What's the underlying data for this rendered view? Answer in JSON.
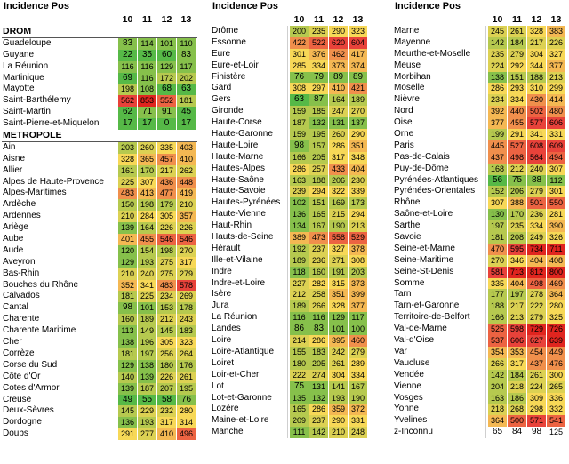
{
  "panels": [
    {
      "title": "Incidence Pos",
      "years": [
        "10",
        "11",
        "12",
        "13"
      ],
      "rows": [
        {
          "type": "section",
          "label": "DROM"
        },
        {
          "label": "Guadeloupe",
          "v": [
            83,
            114,
            101,
            110
          ]
        },
        {
          "label": "Guyane",
          "v": [
            22,
            35,
            60,
            83
          ]
        },
        {
          "label": "La Réunion",
          "v": [
            116,
            116,
            129,
            117
          ]
        },
        {
          "label": "Martinique",
          "v": [
            69,
            116,
            172,
            202
          ]
        },
        {
          "label": "Mayotte",
          "v": [
            198,
            108,
            68,
            63
          ]
        },
        {
          "label": "Saint-Barthélemy",
          "v": [
            562,
            853,
            552,
            181
          ]
        },
        {
          "label": "Saint-Martin",
          "v": [
            62,
            71,
            91,
            45
          ]
        },
        {
          "label": "Saint-Pierre-et-Miquelon",
          "v": [
            17,
            17,
            0,
            17
          ]
        },
        {
          "type": "section",
          "label": "METROPOLE"
        },
        {
          "label": "Ain",
          "v": [
            203,
            260,
            335,
            403
          ]
        },
        {
          "label": "Aisne",
          "v": [
            328,
            365,
            457,
            410
          ]
        },
        {
          "label": "Allier",
          "v": [
            161,
            170,
            217,
            262
          ]
        },
        {
          "label": "Alpes de Haute-Provence",
          "v": [
            225,
            307,
            436,
            448
          ]
        },
        {
          "label": "Alpes-Maritimes",
          "v": [
            483,
            413,
            477,
            419
          ]
        },
        {
          "label": "Ardèche",
          "v": [
            150,
            198,
            179,
            210
          ]
        },
        {
          "label": "Ardennes",
          "v": [
            210,
            284,
            305,
            357
          ]
        },
        {
          "label": "Ariège",
          "v": [
            139,
            164,
            226,
            226
          ]
        },
        {
          "label": "Aube",
          "v": [
            401,
            455,
            546,
            546
          ]
        },
        {
          "label": "Aude",
          "v": [
            120,
            154,
            198,
            270
          ]
        },
        {
          "label": "Aveyron",
          "v": [
            129,
            193,
            275,
            317
          ]
        },
        {
          "label": "Bas-Rhin",
          "v": [
            210,
            240,
            275,
            279
          ]
        },
        {
          "label": "Bouches du Rhône",
          "v": [
            352,
            341,
            483,
            578
          ]
        },
        {
          "label": "Calvados",
          "v": [
            181,
            225,
            234,
            269
          ]
        },
        {
          "label": "Cantal",
          "v": [
            98,
            101,
            153,
            178
          ]
        },
        {
          "label": "Charente",
          "v": [
            160,
            189,
            212,
            243
          ]
        },
        {
          "label": "Charente Maritime",
          "v": [
            113,
            149,
            145,
            183
          ]
        },
        {
          "label": "Cher",
          "v": [
            138,
            196,
            305,
            323
          ]
        },
        {
          "label": "Corrèze",
          "v": [
            181,
            197,
            256,
            264
          ]
        },
        {
          "label": "Corse du Sud",
          "v": [
            129,
            138,
            180,
            176
          ]
        },
        {
          "label": "Côte d'Or",
          "v": [
            140,
            139,
            226,
            261
          ]
        },
        {
          "label": "Cotes d'Armor",
          "v": [
            139,
            187,
            207,
            195
          ]
        },
        {
          "label": "Creuse",
          "v": [
            49,
            55,
            58,
            76
          ]
        },
        {
          "label": "Deux-Sèvres",
          "v": [
            145,
            229,
            232,
            280
          ]
        },
        {
          "label": "Dordogne",
          "v": [
            136,
            193,
            317,
            314
          ]
        },
        {
          "label": "Doubs",
          "v": [
            291,
            277,
            410,
            496
          ]
        }
      ]
    },
    {
      "title": "Incidence Pos",
      "years": [
        "10",
        "11",
        "12",
        "13"
      ],
      "rows": [
        {
          "label": "Drôme",
          "v": [
            200,
            235,
            290,
            323
          ]
        },
        {
          "label": "Essonne",
          "v": [
            422,
            522,
            620,
            604
          ]
        },
        {
          "label": "Eure",
          "v": [
            301,
            376,
            462,
            417
          ]
        },
        {
          "label": "Eure-et-Loir",
          "v": [
            285,
            334,
            373,
            374
          ]
        },
        {
          "label": "Finistère",
          "v": [
            76,
            79,
            89,
            89
          ]
        },
        {
          "label": "Gard",
          "v": [
            308,
            297,
            410,
            421
          ]
        },
        {
          "label": "Gers",
          "v": [
            63,
            87,
            164,
            189
          ]
        },
        {
          "label": "Gironde",
          "v": [
            159,
            185,
            247,
            270
          ]
        },
        {
          "label": "Haute-Corse",
          "v": [
            187,
            132,
            131,
            137
          ]
        },
        {
          "label": "Haute-Garonne",
          "v": [
            159,
            195,
            260,
            290
          ]
        },
        {
          "label": "Haute-Loire",
          "v": [
            98,
            157,
            286,
            351
          ]
        },
        {
          "label": "Haute-Marne",
          "v": [
            166,
            205,
            317,
            348
          ]
        },
        {
          "label": "Hautes-Alpes",
          "v": [
            286,
            257,
            433,
            404
          ]
        },
        {
          "label": "Haute-Saône",
          "v": [
            163,
            188,
            206,
            230
          ]
        },
        {
          "label": "Haute-Savoie",
          "v": [
            239,
            294,
            322,
            339
          ]
        },
        {
          "label": "Hautes-Pyrénées",
          "v": [
            102,
            151,
            169,
            173
          ]
        },
        {
          "label": "Haute-Vienne",
          "v": [
            136,
            165,
            215,
            294
          ]
        },
        {
          "label": "Haut-Rhin",
          "v": [
            134,
            167,
            190,
            213
          ]
        },
        {
          "label": "Hauts-de-Seine",
          "v": [
            389,
            473,
            558,
            529
          ]
        },
        {
          "label": "Hérault",
          "v": [
            192,
            237,
            327,
            378
          ]
        },
        {
          "label": "Ille-et-Vilaine",
          "v": [
            189,
            236,
            271,
            308
          ]
        },
        {
          "label": "Indre",
          "v": [
            118,
            160,
            191,
            203
          ]
        },
        {
          "label": "Indre-et-Loire",
          "v": [
            227,
            282,
            315,
            373
          ]
        },
        {
          "label": "Isère",
          "v": [
            212,
            258,
            351,
            399
          ]
        },
        {
          "label": "Jura",
          "v": [
            189,
            266,
            328,
            377
          ]
        },
        {
          "label": "La Réunion",
          "v": [
            116,
            116,
            129,
            117
          ]
        },
        {
          "label": "Landes",
          "v": [
            86,
            83,
            101,
            100
          ]
        },
        {
          "label": "Loire",
          "v": [
            214,
            286,
            395,
            460
          ]
        },
        {
          "label": "Loire-Atlantique",
          "v": [
            155,
            183,
            242,
            279
          ]
        },
        {
          "label": "Loiret",
          "v": [
            180,
            205,
            261,
            289
          ]
        },
        {
          "label": "Loir-et-Cher",
          "v": [
            222,
            274,
            304,
            334
          ]
        },
        {
          "label": "Lot",
          "v": [
            75,
            131,
            141,
            167
          ]
        },
        {
          "label": "Lot-et-Garonne",
          "v": [
            135,
            132,
            193,
            190
          ]
        },
        {
          "label": "Lozère",
          "v": [
            165,
            286,
            359,
            372
          ]
        },
        {
          "label": "Maine-et-Loire",
          "v": [
            209,
            237,
            290,
            331
          ]
        },
        {
          "label": "Manche",
          "v": [
            111,
            142,
            210,
            248
          ]
        }
      ]
    },
    {
      "title": "Incidence Pos",
      "years": [
        "10",
        "11",
        "12",
        "13"
      ],
      "rows": [
        {
          "label": "Marne",
          "v": [
            245,
            261,
            328,
            383
          ]
        },
        {
          "label": "Mayenne",
          "v": [
            142,
            184,
            217,
            226
          ]
        },
        {
          "label": "Meurthe-et-Moselle",
          "v": [
            235,
            279,
            304,
            327
          ]
        },
        {
          "label": "Meuse",
          "v": [
            224,
            292,
            344,
            377
          ]
        },
        {
          "label": "Morbihan",
          "v": [
            138,
            151,
            188,
            213
          ]
        },
        {
          "label": "Moselle",
          "v": [
            286,
            293,
            310,
            299
          ]
        },
        {
          "label": "Nièvre",
          "v": [
            234,
            334,
            430,
            414
          ]
        },
        {
          "label": "Nord",
          "v": [
            392,
            440,
            502,
            480
          ]
        },
        {
          "label": "Oise",
          "v": [
            377,
            455,
            577,
            606
          ]
        },
        {
          "label": "Orne",
          "v": [
            199,
            291,
            341,
            331
          ]
        },
        {
          "label": "Paris",
          "v": [
            445,
            527,
            608,
            609
          ]
        },
        {
          "label": "Pas-de-Calais",
          "v": [
            437,
            498,
            564,
            494
          ]
        },
        {
          "label": "Puy-de-Dôme",
          "v": [
            168,
            212,
            240,
            307
          ]
        },
        {
          "label": "Pyrénées-Atlantiques",
          "v": [
            56,
            75,
            88,
            112
          ]
        },
        {
          "label": "Pyrénées-Orientales",
          "v": [
            152,
            206,
            279,
            301
          ]
        },
        {
          "label": "Rhône",
          "v": [
            307,
            388,
            501,
            550
          ]
        },
        {
          "label": "Saône-et-Loire",
          "v": [
            130,
            170,
            236,
            281
          ]
        },
        {
          "label": "Sarthe",
          "v": [
            197,
            235,
            334,
            390
          ]
        },
        {
          "label": "Savoie",
          "v": [
            181,
            208,
            249,
            326
          ]
        },
        {
          "label": "Seine-et-Marne",
          "v": [
            470,
            595,
            734,
            711
          ]
        },
        {
          "label": "Seine-Maritime",
          "v": [
            270,
            346,
            404,
            408
          ]
        },
        {
          "label": "Seine-St-Denis",
          "v": [
            581,
            713,
            812,
            800
          ]
        },
        {
          "label": "Somme",
          "v": [
            335,
            404,
            498,
            469
          ]
        },
        {
          "label": "Tarn",
          "v": [
            177,
            197,
            278,
            364
          ]
        },
        {
          "label": "Tarn-et-Garonne",
          "v": [
            188,
            217,
            222,
            280
          ]
        },
        {
          "label": "Territoire-de-Belfort",
          "v": [
            166,
            213,
            279,
            325
          ]
        },
        {
          "label": "Val-de-Marne",
          "v": [
            525,
            598,
            729,
            726
          ]
        },
        {
          "label": "Val-d'Oise",
          "v": [
            537,
            606,
            627,
            639
          ]
        },
        {
          "label": "Var",
          "v": [
            354,
            353,
            454,
            449
          ]
        },
        {
          "label": "Vaucluse",
          "v": [
            266,
            317,
            437,
            476
          ]
        },
        {
          "label": "Vendée",
          "v": [
            142,
            184,
            261,
            300
          ]
        },
        {
          "label": "Vienne",
          "v": [
            204,
            218,
            224,
            265
          ]
        },
        {
          "label": "Vosges",
          "v": [
            163,
            186,
            309,
            336
          ]
        },
        {
          "label": "Yonne",
          "v": [
            218,
            268,
            298,
            332
          ]
        },
        {
          "label": "Yvelines",
          "v": [
            364,
            500,
            571,
            541
          ]
        },
        {
          "label": "z-Inconnu",
          "v": [
            65,
            84,
            98,
            125
          ],
          "plain": true
        }
      ]
    }
  ],
  "colors": {
    "scale": [
      "#56b947",
      "#86c04b",
      "#b6c94f",
      "#dcd153",
      "#f7d857",
      "#f4b853",
      "#f08f4c",
      "#ec6342",
      "#e8423a",
      "#e0251f"
    ]
  }
}
